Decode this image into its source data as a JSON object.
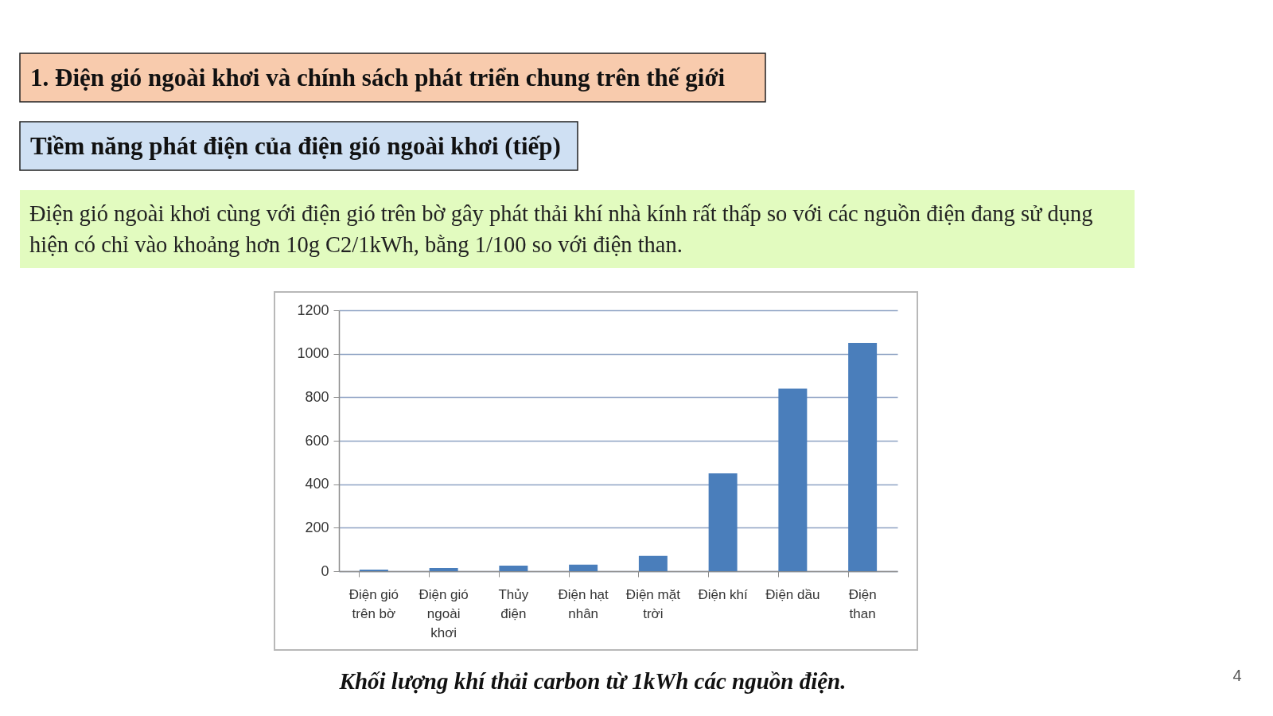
{
  "chart_data": {
    "type": "bar",
    "title": "1. Điện gió ngoài khơi và chính sách phát triển chung trên thế giới",
    "subtitle": "Tiềm năng phát điện của điện gió ngoài khơi (tiếp)",
    "annotations": [
      "Điện gió ngoài khơi cùng với điện gió trên bờ gây phát thải khí nhà kính rất thấp so với các nguồn điện đang sử dụng hiện có chỉ vào khoảng hơn 10g C2/1kWh, bằng 1/100 so với điện than.",
      "Khối lượng khí thải carbon từ 1kWh các nguồn điện.",
      "4"
    ],
    "categories": [
      "Điện gió trên bờ",
      "Điện gió ngoài khơi",
      "Thủy điện",
      "Điện hạt nhân",
      "Điện mặt trời",
      "Điện khí",
      "Điện dầu",
      "Điện than"
    ],
    "values": [
      7,
      15,
      26,
      30,
      70,
      450,
      840,
      1050
    ],
    "color": "#4a7ebb",
    "ylim": [
      0,
      1200
    ],
    "yticks": [
      0,
      200,
      400,
      600,
      800,
      1000,
      1200
    ],
    "grid": "y"
  }
}
